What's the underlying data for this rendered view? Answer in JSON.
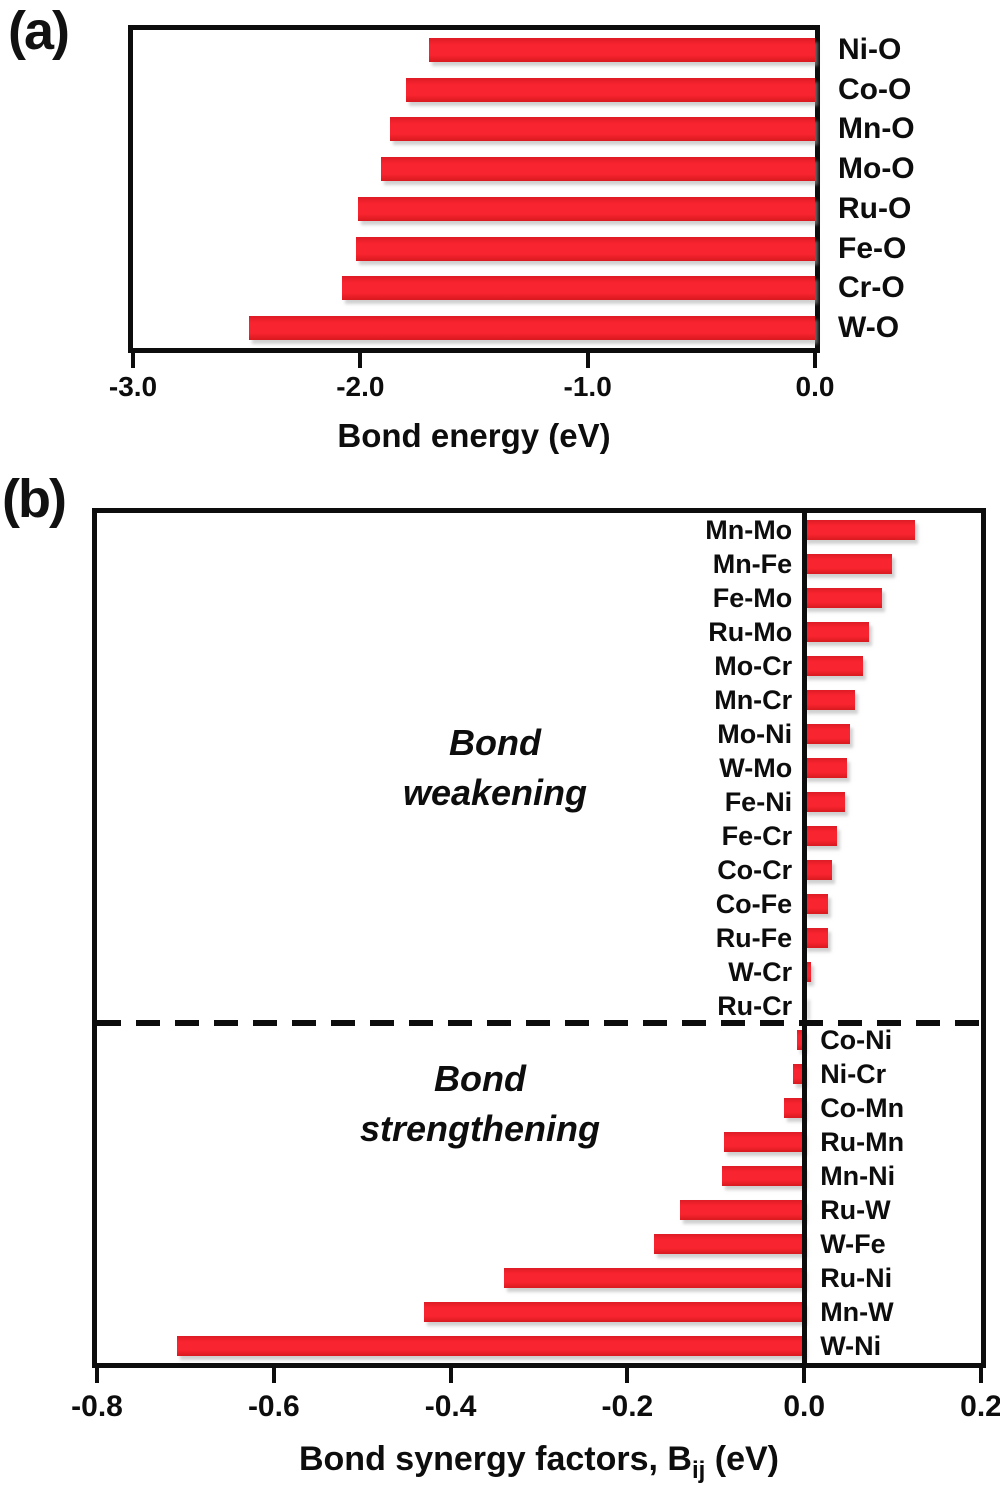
{
  "panels": {
    "a": "(a)",
    "b": "(b)"
  },
  "chart_data": [
    {
      "panel": "(a)",
      "type": "bar",
      "orientation": "horizontal",
      "xlabel": "Bond energy (eV)",
      "categories": [
        "Ni-O",
        "Co-O",
        "Mn-O",
        "Mo-O",
        "Ru-O",
        "Fe-O",
        "Cr-O",
        "W-O"
      ],
      "values": [
        -1.7,
        -1.8,
        -1.87,
        -1.91,
        -2.01,
        -2.02,
        -2.08,
        -2.49
      ],
      "xlim": [
        -3.0,
        0.0
      ],
      "xtick_values": [
        -3.0,
        -2.0,
        -1.0,
        0.0
      ],
      "xtick_labels": [
        "-3.0",
        "-2.0",
        "-1.0",
        "0.0"
      ],
      "bar_color": "#f2232e",
      "category_label_side": "right",
      "grid": false
    },
    {
      "panel": "(b)",
      "type": "bar",
      "orientation": "horizontal",
      "xlabel_prefix": "Bond synergy factors, B",
      "xlabel_sub": "ij",
      "xlabel_suffix": " (eV)",
      "categories": [
        "Mn-Mo",
        "Mn-Fe",
        "Fe-Mo",
        "Ru-Mo",
        "Mo-Cr",
        "Mn-Cr",
        "Mo-Ni",
        "W-Mo",
        "Fe-Ni",
        "Fe-Cr",
        "Co-Cr",
        "Co-Fe",
        "Ru-Fe",
        "W-Cr",
        "Ru-Cr",
        "Co-Ni",
        "Ni-Cr",
        "Co-Mn",
        "Ru-Mn",
        "Mn-Ni",
        "Ru-W",
        "W-Fe",
        "Ru-Ni",
        "Mn-W",
        "W-Ni"
      ],
      "values": [
        0.125,
        0.099,
        0.088,
        0.073,
        0.066,
        0.057,
        0.052,
        0.048,
        0.046,
        0.037,
        0.032,
        0.027,
        0.027,
        0.008,
        0.003,
        -0.008,
        -0.013,
        -0.023,
        -0.091,
        -0.093,
        -0.14,
        -0.17,
        -0.34,
        -0.43,
        -0.71
      ],
      "xlim": [
        -0.8,
        0.2
      ],
      "xtick_values": [
        -0.8,
        -0.6,
        -0.4,
        -0.2,
        0.0,
        0.2
      ],
      "xtick_labels": [
        "-0.8",
        "-0.6",
        "-0.4",
        "-0.2",
        "0.0",
        "0.2"
      ],
      "bar_color": "#f2232e",
      "zero_axis_line": true,
      "dashed_divider_between": [
        "Ru-Cr",
        "Co-Ni"
      ],
      "annotations": [
        {
          "text_lines": [
            "Bond",
            "weakening"
          ],
          "region": "positive"
        },
        {
          "text_lines": [
            "Bond",
            "strengthening"
          ],
          "region": "negative"
        }
      ]
    }
  ]
}
